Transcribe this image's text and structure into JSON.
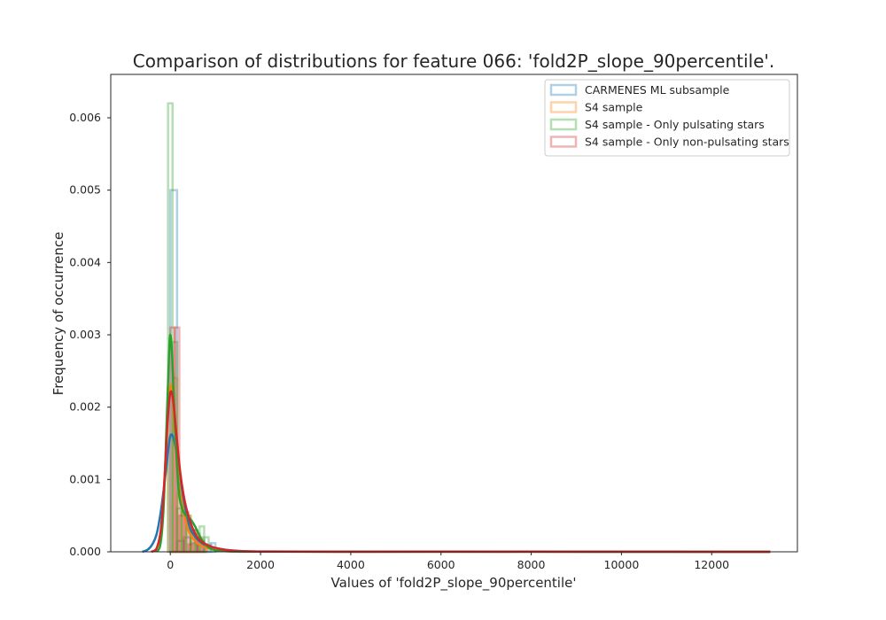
{
  "chart_data": {
    "type": "histogram+kde",
    "title": "Comparison of distributions for feature 066: 'fold2P_slope_90percentile'.",
    "xlabel": "Values of 'fold2P_slope_90percentile'",
    "ylabel": "Frequency of occurrence",
    "xlim": [
      -1320,
      13900
    ],
    "ylim": [
      0,
      0.0066
    ],
    "x_ticks": [
      0,
      2000,
      4000,
      6000,
      8000,
      10000,
      12000
    ],
    "x_tick_labels": [
      "0",
      "2000",
      "4000",
      "6000",
      "8000",
      "10000",
      "12000"
    ],
    "y_ticks": [
      0,
      0.001,
      0.002,
      0.003,
      0.004,
      0.005,
      0.006
    ],
    "y_tick_labels": [
      "0.000",
      "0.001",
      "0.002",
      "0.003",
      "0.004",
      "0.005",
      "0.006"
    ],
    "grid": false,
    "legend_position": "top-right",
    "series": [
      {
        "name": "CARMENES ML subsample",
        "color": "#1f77b4",
        "hist_edges": [
          0,
          150,
          300,
          450,
          600,
          750,
          900,
          1000
        ],
        "hist_values": [
          0.005,
          0.00015,
          0.0002,
          0.00012,
          0.00015,
          0.0001,
          0.00012
        ],
        "kde_x": [
          -620,
          -500,
          -400,
          -300,
          -200,
          -100,
          0,
          100,
          200,
          300,
          400,
          500,
          700,
          900,
          1200,
          1600,
          2000,
          3000,
          6000,
          10000,
          13300
        ],
        "kde_y": [
          0,
          3e-05,
          0.0001,
          0.00025,
          0.0006,
          0.0011,
          0.0016,
          0.0015,
          0.0011,
          0.0007,
          0.0004,
          0.00025,
          0.00012,
          7e-05,
          3e-05,
          1e-05,
          5e-06,
          2e-06,
          1e-06,
          1e-06,
          0
        ]
      },
      {
        "name": "S4 sample",
        "color": "#ff7f0e",
        "hist_edges": [
          -50,
          50,
          150,
          250,
          350,
          450,
          550,
          650,
          800
        ],
        "hist_values": [
          0.0022,
          0.0024,
          0.0008,
          0.0006,
          0.0005,
          0.0003,
          0.0002,
          0.0001
        ],
        "kde_x": [
          -420,
          -300,
          -200,
          -120,
          -60,
          0,
          60,
          120,
          200,
          300,
          400,
          550,
          700,
          900,
          1200,
          1600,
          2500,
          6000,
          10000,
          13300
        ],
        "kde_y": [
          0,
          5e-05,
          0.00035,
          0.0011,
          0.0019,
          0.0023,
          0.0021,
          0.0015,
          0.0009,
          0.00055,
          0.0003,
          0.00015,
          8e-05,
          4e-05,
          1e-05,
          5e-06,
          2e-06,
          1e-06,
          1e-06,
          0
        ]
      },
      {
        "name": "S4 sample - Only pulsating stars",
        "color": "#2ca02c",
        "hist_edges": [
          -50,
          50,
          150,
          250,
          350,
          450,
          550,
          650,
          750,
          850
        ],
        "hist_values": [
          0.0062,
          0.0029,
          0.0006,
          0.00055,
          0.0005,
          0.0003,
          0.00025,
          0.00035,
          0.0002
        ],
        "kde_x": [
          -320,
          -220,
          -150,
          -80,
          -30,
          0,
          40,
          100,
          180,
          260,
          350,
          450,
          550,
          650,
          750,
          850,
          1000,
          1200,
          1500,
          2000,
          6000,
          13300
        ],
        "kde_y": [
          0,
          0.0001,
          0.0006,
          0.0018,
          0.0027,
          0.003,
          0.0027,
          0.0018,
          0.0009,
          0.0006,
          0.0005,
          0.00045,
          0.00035,
          0.00022,
          0.00012,
          6e-05,
          2e-05,
          1e-05,
          3e-06,
          1e-06,
          1e-06,
          0
        ]
      },
      {
        "name": "S4 sample - Only non-pulsating stars",
        "color": "#d62728",
        "hist_edges": [
          0,
          100,
          200,
          300,
          400,
          500,
          600,
          700,
          800
        ],
        "hist_values": [
          0.0031,
          0.0031,
          0.0005,
          0.00055,
          0.0001,
          0.0003,
          0.0002,
          0.0001
        ],
        "kde_x": [
          -420,
          -300,
          -200,
          -120,
          -60,
          0,
          60,
          140,
          220,
          320,
          450,
          600,
          800,
          1100,
          1500,
          2500,
          6000,
          8000,
          10000,
          13300
        ],
        "kde_y": [
          0,
          5e-05,
          0.00035,
          0.0011,
          0.0018,
          0.0022,
          0.0021,
          0.0016,
          0.0011,
          0.0007,
          0.0004,
          0.0002,
          0.0001,
          4e-05,
          1e-05,
          3e-06,
          2e-06,
          2e-06,
          1e-06,
          0
        ]
      }
    ]
  }
}
